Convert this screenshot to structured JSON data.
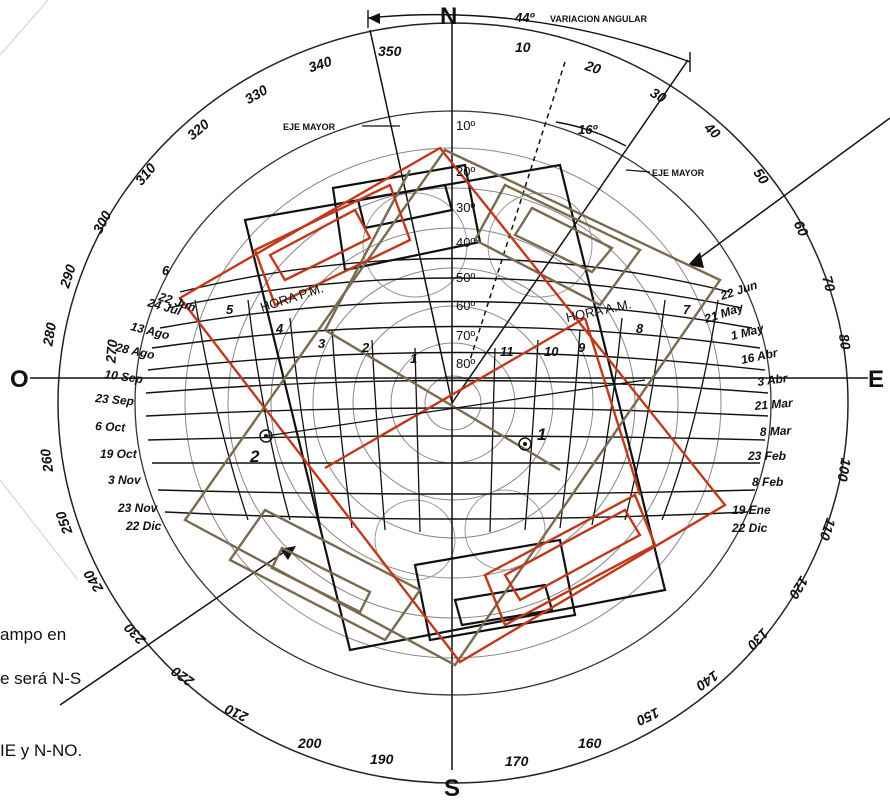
{
  "cardinal": {
    "n": "N",
    "s": "S",
    "e": "E",
    "o": "O"
  },
  "azimuths": [
    "350",
    "340",
    "330",
    "320",
    "310",
    "300",
    "290",
    "280",
    "270",
    "260",
    "250",
    "240",
    "230",
    "220",
    "210",
    "200",
    "190",
    "10",
    "20",
    "30",
    "40",
    "50",
    "60",
    "70",
    "80",
    "100",
    "110",
    "120",
    "130",
    "140",
    "150",
    "160",
    "170"
  ],
  "annotations": {
    "variation": "44º",
    "variation_label": "VARIACION ANGULAR",
    "eje_mayor_1": "EJE MAYOR",
    "eje_mayor_2": "EJE MAYOR",
    "angle_16": "16º",
    "hora_pm": "HORA P.M.",
    "hora_am": "HORA A.M.",
    "point_1": "1",
    "point_2": "2"
  },
  "altitudes": [
    "10º",
    "20º",
    "30º",
    "40º",
    "50º",
    "60º",
    "70º",
    "80º"
  ],
  "hours": [
    "6",
    "5",
    "4",
    "3",
    "2",
    "1",
    "11",
    "10",
    "9",
    "8",
    "7"
  ],
  "dates_left": [
    "22 Jun",
    "24 Jul",
    "13 Ago",
    "28 Ago",
    "10 Sep",
    "23 Sep",
    "6 Oct",
    "19 Oct",
    "3 Nov",
    "23 Nov",
    "22 Dic"
  ],
  "dates_right": [
    "22 Jun",
    "21 May",
    "1 May",
    "16 Abr",
    "3 Abr",
    "21 Mar",
    "8 Mar",
    "23 Feb",
    "8 Feb",
    "19 Ene",
    "22 Dic"
  ],
  "side_text": [
    "ampo en",
    "e será N-S",
    "IE y N-NO."
  ]
}
